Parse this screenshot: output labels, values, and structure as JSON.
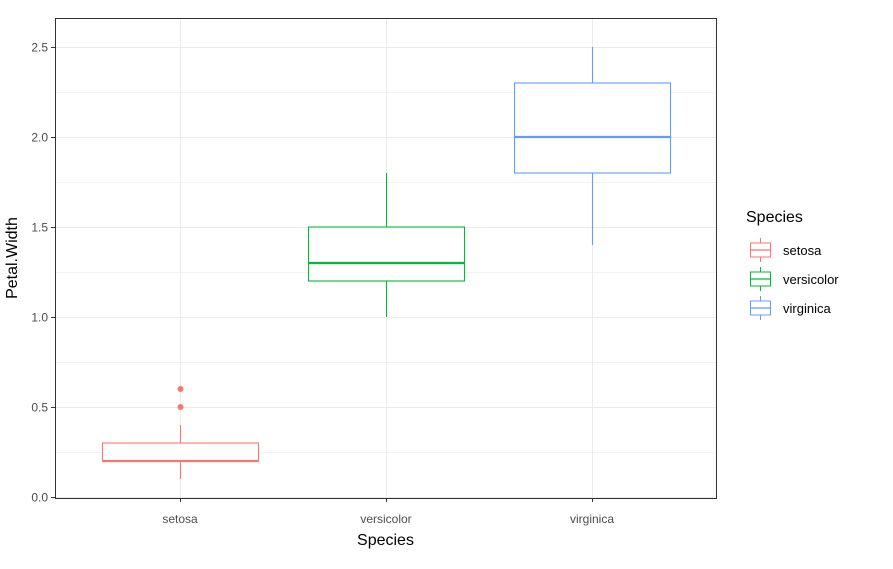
{
  "chart_data": {
    "type": "boxplot",
    "xlabel": "Species",
    "ylabel": "Petal.Width",
    "categories": [
      "setosa",
      "versicolor",
      "virginica"
    ],
    "ylim": [
      0.0,
      2.5
    ],
    "yticks": [
      "0.0",
      "0.5",
      "1.0",
      "1.5",
      "2.0",
      "2.5"
    ],
    "grid": true,
    "legend": {
      "title": "Species",
      "position": "right",
      "entries": [
        "setosa",
        "versicolor",
        "virginica"
      ]
    },
    "boxes": [
      {
        "category": "setosa",
        "min": 0.1,
        "q1": 0.2,
        "median": 0.2,
        "q3": 0.3,
        "max": 0.4,
        "outliers": [
          0.5,
          0.6
        ],
        "color": "#F8766D"
      },
      {
        "category": "versicolor",
        "min": 1.0,
        "q1": 1.2,
        "median": 1.3,
        "q3": 1.5,
        "max": 1.8,
        "outliers": [],
        "color": "#00BA38"
      },
      {
        "category": "virginica",
        "min": 1.4,
        "q1": 1.8,
        "median": 2.0,
        "q3": 2.3,
        "max": 2.5,
        "outliers": [],
        "color": "#619CFF"
      }
    ]
  }
}
